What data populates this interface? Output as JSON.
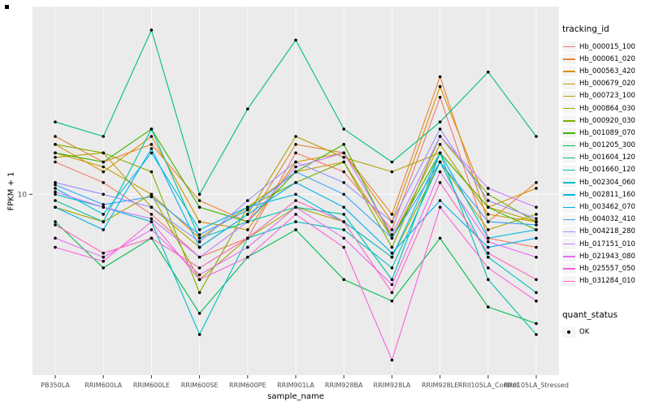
{
  "chart": {
    "ylabel": "FPKM + 1",
    "xlabel": "sample_name",
    "panel_bg": "#EBEBEB",
    "grid_color": "#FFFFFF",
    "tick_text_color": "#4D4D4D",
    "point_color": "#000000",
    "y_ticks": [
      {
        "value": 10,
        "label": "10"
      }
    ]
  },
  "legend": {
    "tracking_title": "tracking_id",
    "quant_title": "quant_status",
    "quant_items": [
      {
        "label": "OK"
      }
    ]
  },
  "chart_data": {
    "type": "line",
    "y_scale": "log10",
    "ylim": [
      2.3,
      46
    ],
    "grid": true,
    "legend_position": "right",
    "xlabel": "sample_name",
    "ylabel": "FPKM + 1",
    "x_categories": [
      "PB350LA",
      "RRIM600LA",
      "RRIM600LE",
      "RRIM600SE",
      "RRIM600PE",
      "RRIM901LA",
      "RRIM928BA",
      "RRIM928LA",
      "RRIM928LE",
      "RRII105LA_Control",
      "RRII105LA_Stressed"
    ],
    "series": [
      {
        "name": "Hb_000015_100",
        "color": "#F8766D",
        "values": [
          13,
          11,
          8.5,
          6,
          7,
          14,
          12,
          7.5,
          22,
          7,
          6.5
        ]
      },
      {
        "name": "Hb_000061_020",
        "color": "#EA8331",
        "values": [
          16,
          13,
          15,
          9.5,
          8,
          15,
          14,
          8.5,
          26,
          8,
          11
        ]
      },
      {
        "name": "Hb_000563_420",
        "color": "#D89000",
        "values": [
          15,
          12,
          16,
          8,
          7.5,
          13,
          14,
          8,
          24,
          9,
          10.5
        ]
      },
      {
        "name": "Hb_000679_020",
        "color": "#C99800",
        "values": [
          14,
          12.5,
          10,
          7,
          9,
          12,
          13,
          7,
          15,
          8.5,
          8
        ]
      },
      {
        "name": "Hb_000723_100",
        "color": "#B79F00",
        "values": [
          13.5,
          14,
          9,
          6.5,
          8.5,
          16,
          13.5,
          12,
          14,
          9,
          8
        ]
      },
      {
        "name": "Hb_000864_030",
        "color": "#A3A500",
        "values": [
          9,
          8,
          10,
          5,
          7,
          9,
          8,
          6,
          13,
          7.5,
          8.5
        ]
      },
      {
        "name": "Hb_000920_030",
        "color": "#7CAE00",
        "values": [
          15,
          14,
          12,
          4.5,
          9,
          11,
          13,
          6.5,
          16,
          10,
          8
        ]
      },
      {
        "name": "Hb_001089_070",
        "color": "#39B600",
        "values": [
          14,
          13,
          17,
          9,
          8,
          12,
          15,
          7,
          14,
          9,
          7.5
        ]
      },
      {
        "name": "Hb_001205_300",
        "color": "#00BB4E",
        "values": [
          8,
          5.5,
          7,
          3.8,
          6,
          7.5,
          5,
          4.2,
          7,
          4,
          3.5
        ]
      },
      {
        "name": "Hb_001604_120",
        "color": "#00BF7D",
        "values": [
          18,
          16,
          38,
          10,
          20,
          35,
          17,
          13,
          18,
          27,
          16
        ]
      },
      {
        "name": "Hb_001660_120",
        "color": "#00C1A3",
        "values": [
          9.5,
          8,
          17,
          7,
          8,
          9,
          8.5,
          5,
          14,
          5,
          3.2
        ]
      },
      {
        "name": "Hb_002304_060",
        "color": "#00BFC4",
        "values": [
          10,
          9,
          8,
          3.2,
          7,
          8,
          7.5,
          5.5,
          13,
          6,
          4.5
        ]
      },
      {
        "name": "Hb_002811_160",
        "color": "#00BAE0",
        "values": [
          10.5,
          8.5,
          14,
          7.5,
          9,
          10,
          8,
          6,
          14,
          7,
          7.5
        ]
      },
      {
        "name": "Hb_003462_070",
        "color": "#00B0F6",
        "values": [
          9,
          7.5,
          14.5,
          6.5,
          8.5,
          11,
          9,
          6.2,
          9.5,
          6.5,
          7
        ]
      },
      {
        "name": "Hb_004032_410",
        "color": "#35A2FF",
        "values": [
          10.8,
          9.2,
          9.8,
          7.2,
          8.8,
          12,
          10,
          7,
          13,
          8,
          7.8
        ]
      },
      {
        "name": "Hb_004218_280",
        "color": "#9590FF",
        "values": [
          11,
          10,
          9,
          6.8,
          9.5,
          13,
          11,
          8,
          17,
          9.5,
          8.2
        ]
      },
      {
        "name": "Hb_017151_010",
        "color": "#C77CFF",
        "values": [
          10.2,
          9,
          8.2,
          6,
          8,
          12.5,
          14,
          7.2,
          16,
          10.5,
          9
        ]
      },
      {
        "name": "Hb_021943_080",
        "color": "#E76BF3",
        "values": [
          7,
          6,
          7.5,
          5.2,
          6.5,
          9,
          7,
          4.8,
          12,
          6.8,
          6
        ]
      },
      {
        "name": "Hb_025557_050",
        "color": "#FA62DB",
        "values": [
          6.5,
          5.8,
          8,
          5,
          6,
          8.5,
          6.5,
          2.6,
          9,
          5.5,
          4.2
        ]
      },
      {
        "name": "Hb_031284_010",
        "color": "#FF62BC",
        "values": [
          7.8,
          6.2,
          7,
          5.5,
          7,
          9.5,
          8,
          4.5,
          11,
          6.2,
          5
        ]
      }
    ]
  }
}
